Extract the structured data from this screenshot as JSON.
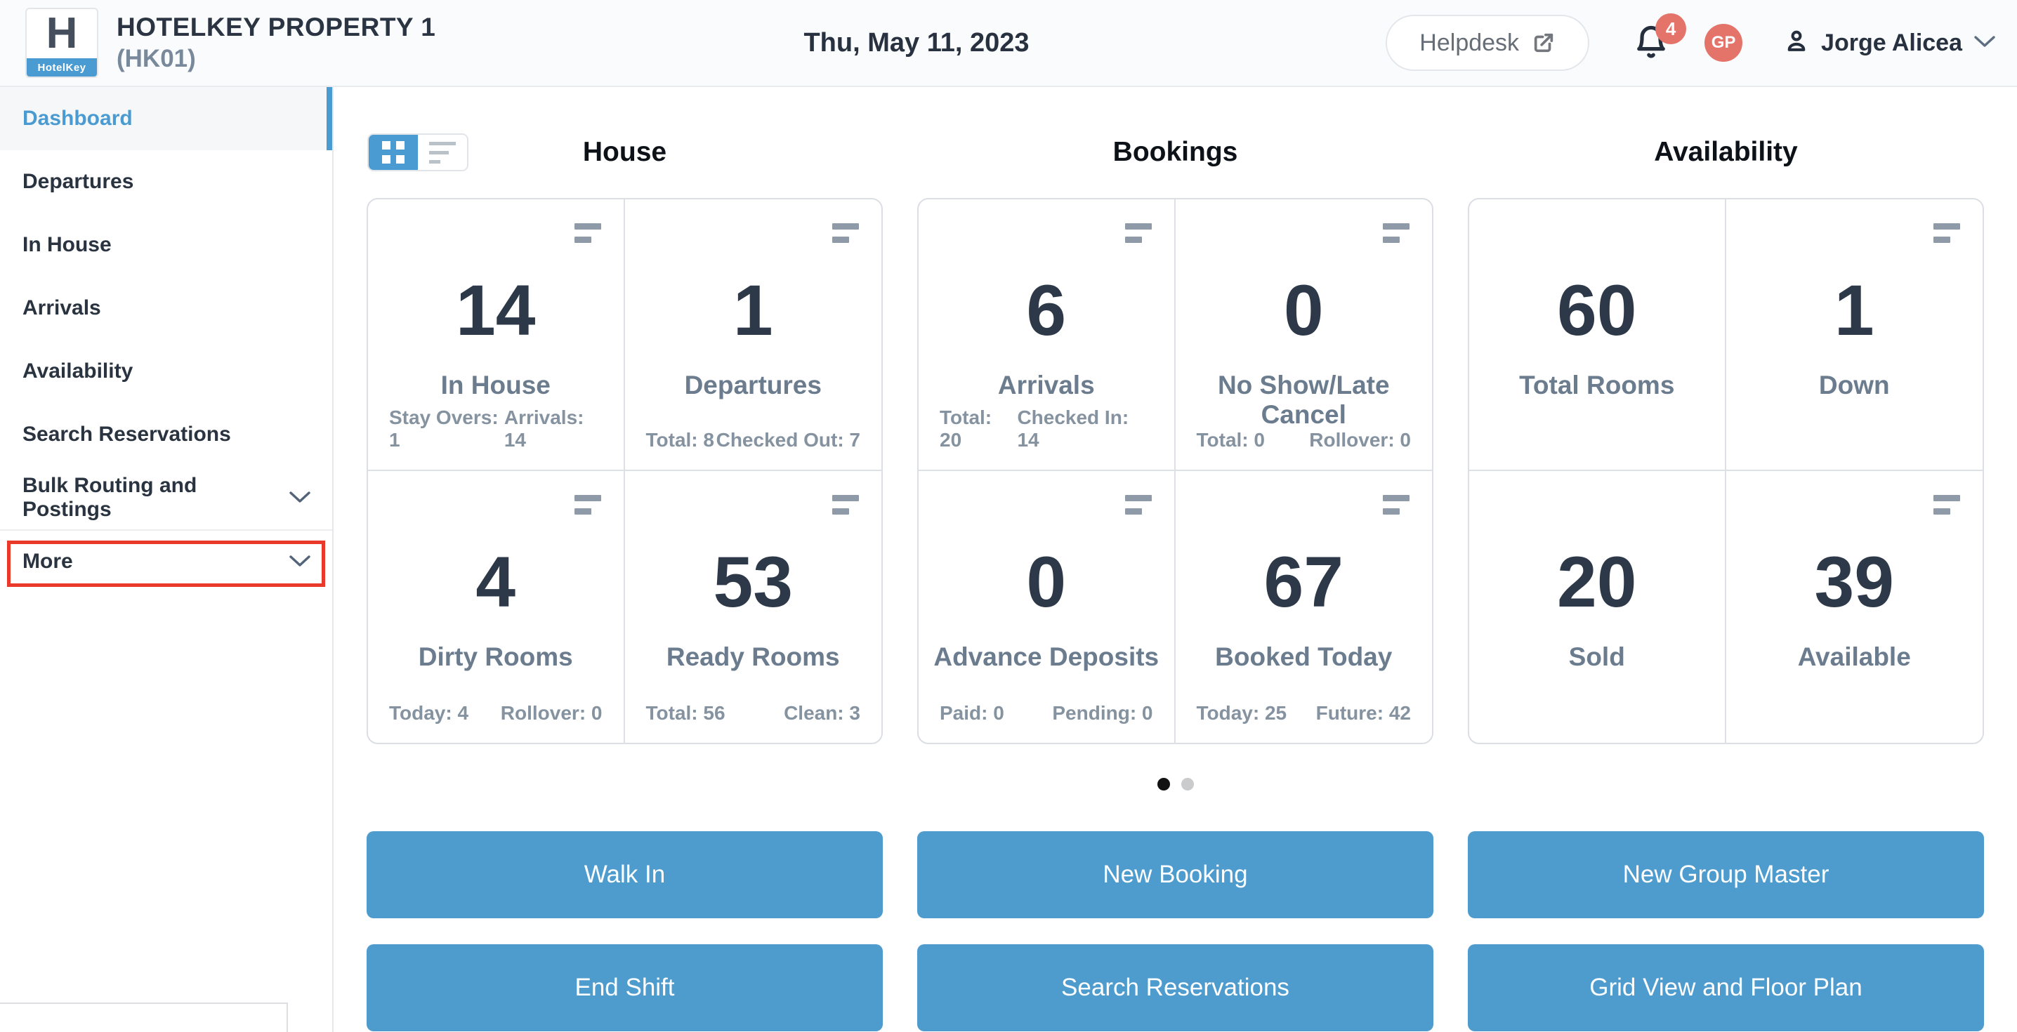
{
  "header": {
    "logo_letter": "H",
    "logo_brand": "HotelKey",
    "property_name": "HOTELKEY PROPERTY 1",
    "property_code": "(HK01)",
    "date": "Thu, May 11, 2023",
    "helpdesk_label": "Helpdesk",
    "notification_count": "4",
    "avatar_initials": "GP",
    "user_name": "Jorge Alicea"
  },
  "sidebar": {
    "items": [
      {
        "label": "Dashboard",
        "active": true
      },
      {
        "label": "Departures"
      },
      {
        "label": "In House"
      },
      {
        "label": "Arrivals"
      },
      {
        "label": "Availability"
      },
      {
        "label": "Search Reservations"
      },
      {
        "label": "Bulk Routing and Postings",
        "chevron": true
      },
      {
        "label": "More",
        "chevron": true,
        "divider_before": true,
        "highlighted": true
      }
    ]
  },
  "view_toggle": {
    "grid_active": true,
    "list_active": false
  },
  "columns": [
    {
      "title": "House",
      "cards": [
        {
          "value": "14",
          "label": "In House",
          "menu": true,
          "stats": [
            "Stay Overs: 1",
            "Arrivals: 14"
          ]
        },
        {
          "value": "1",
          "label": "Departures",
          "menu": true,
          "stats": [
            "Total: 8",
            "Checked Out: 7"
          ]
        },
        {
          "value": "4",
          "label": "Dirty Rooms",
          "menu": true,
          "stats": [
            "Today: 4",
            "Rollover: 0"
          ]
        },
        {
          "value": "53",
          "label": "Ready Rooms",
          "menu": true,
          "stats": [
            "Total: 56",
            "Clean: 3"
          ]
        }
      ],
      "buttons": [
        "Walk In",
        "End Shift"
      ]
    },
    {
      "title": "Bookings",
      "cards": [
        {
          "value": "6",
          "label": "Arrivals",
          "menu": true,
          "stats": [
            "Total: 20",
            "Checked In: 14"
          ]
        },
        {
          "value": "0",
          "label": "No Show/Late Cancel",
          "menu": true,
          "stats": [
            "Total: 0",
            "Rollover: 0"
          ]
        },
        {
          "value": "0",
          "label": "Advance Deposits",
          "menu": true,
          "stats": [
            "Paid: 0",
            "Pending: 0"
          ]
        },
        {
          "value": "67",
          "label": "Booked Today",
          "menu": true,
          "stats": [
            "Today: 25",
            "Future: 42"
          ]
        }
      ],
      "buttons": [
        "New Booking",
        "Search Reservations"
      ]
    },
    {
      "title": "Availability",
      "cards": [
        {
          "value": "60",
          "label": "Total Rooms",
          "menu": false,
          "stats": []
        },
        {
          "value": "1",
          "label": "Down",
          "menu": true,
          "stats": []
        },
        {
          "value": "20",
          "label": "Sold",
          "menu": false,
          "stats": []
        },
        {
          "value": "39",
          "label": "Available",
          "menu": true,
          "stats": []
        }
      ],
      "buttons": [
        "New Group Master",
        "Grid View and Floor Plan"
      ]
    }
  ],
  "carousel": {
    "dot_count": 2,
    "active_index": 0
  },
  "colors": {
    "accent_blue": "#4a9bd1",
    "button_blue": "#4e9bce",
    "salmon": "#e4736a",
    "annotation_red": "#e8392b",
    "dark_text": "#2d3949",
    "label_gray": "#6b7c8e"
  }
}
